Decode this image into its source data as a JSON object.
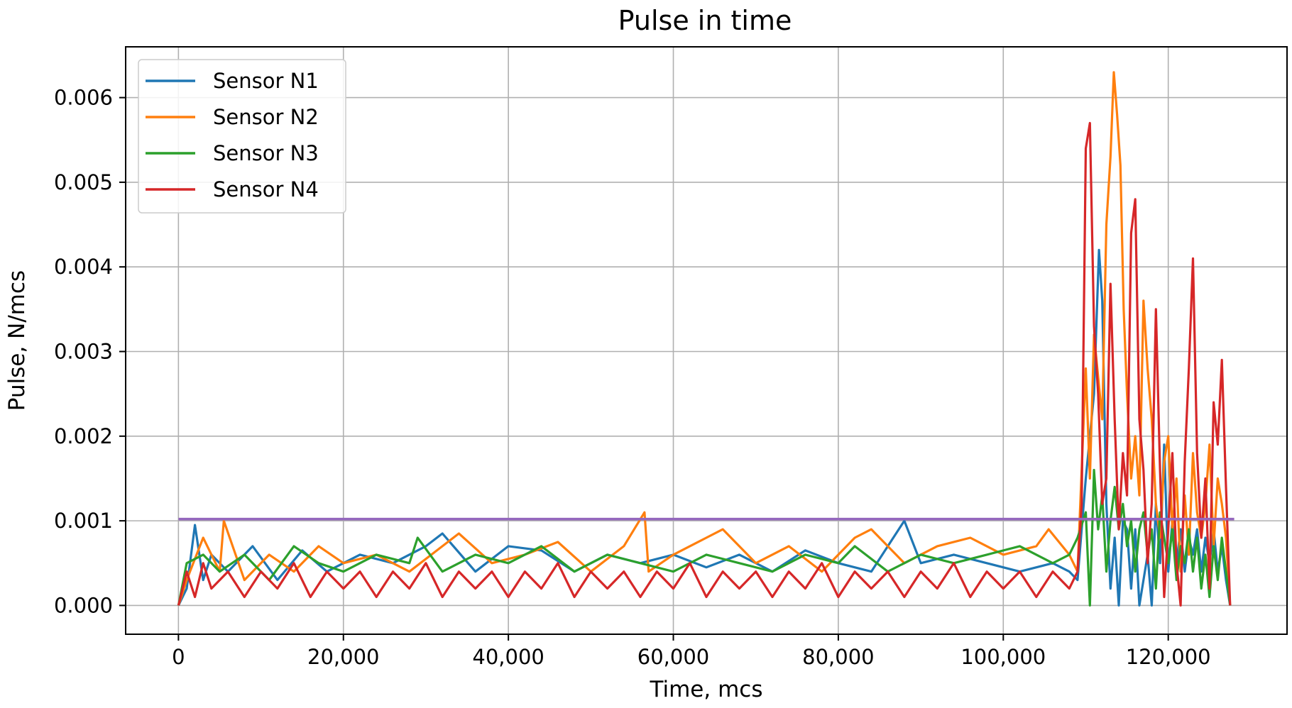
{
  "chart_data": {
    "type": "line",
    "title": "Pulse in time",
    "xlabel": "Time, mcs",
    "ylabel": "Pulse, N/mcs",
    "xlim": [
      -6400,
      134400
    ],
    "ylim": [
      -0.00034,
      0.0066
    ],
    "x_ticks": [
      0,
      20000,
      40000,
      60000,
      80000,
      100000,
      120000
    ],
    "x_tick_labels": [
      "0",
      "20,000",
      "40,000",
      "60,000",
      "80,000",
      "100,000",
      "120,000"
    ],
    "y_ticks": [
      0,
      0.001,
      0.002,
      0.003,
      0.004,
      0.005,
      0.006
    ],
    "y_tick_labels": [
      "0.000",
      "0.001",
      "0.002",
      "0.003",
      "0.004",
      "0.005",
      "0.006"
    ],
    "grid": true,
    "legend_position": "top-left",
    "series": [
      {
        "name": "Sensor N1",
        "color": "#1f77b4",
        "x": [
          0,
          1000,
          2000,
          3000,
          4000,
          6000,
          9000,
          12000,
          15000,
          18000,
          22000,
          26000,
          30000,
          32000,
          36000,
          40000,
          44000,
          48000,
          52000,
          56000,
          60000,
          64000,
          68000,
          72000,
          76000,
          80000,
          84000,
          88000,
          90000,
          94000,
          98000,
          102000,
          106000,
          108000,
          109000,
          110000,
          111000,
          111600,
          112000,
          112500,
          113000,
          113500,
          114000,
          114500,
          115000,
          115500,
          116000,
          116500,
          117000,
          117500,
          118000,
          118500,
          119000,
          119500,
          120000,
          120500,
          121000,
          121500,
          122000,
          122500,
          123000,
          123500,
          124000,
          124500,
          125000,
          125500,
          126000,
          126500,
          127000,
          127500
        ],
        "y": [
          0,
          0.0002,
          0.00095,
          0.0003,
          0.0006,
          0.0004,
          0.0007,
          0.0003,
          0.00065,
          0.0004,
          0.0006,
          0.0005,
          0.0007,
          0.00085,
          0.0004,
          0.0007,
          0.00065,
          0.0004,
          0.0006,
          0.0005,
          0.0006,
          0.00045,
          0.0006,
          0.0004,
          0.00065,
          0.0005,
          0.0004,
          0.001,
          0.0005,
          0.0006,
          0.0005,
          0.0004,
          0.0005,
          0.0004,
          0.0003,
          0.0015,
          0.0025,
          0.0042,
          0.0036,
          0.0012,
          0.0002,
          0.0008,
          0.0,
          0.001,
          0.0009,
          0.0002,
          0.0009,
          0.0,
          0.0003,
          0.0006,
          0.0,
          0.0012,
          0.0005,
          0.0019,
          0.0004,
          0.001,
          0.0005,
          0.0009,
          0.0004,
          0.0008,
          0.0006,
          0.0009,
          0.0004,
          0.0008,
          0.0005,
          0.0009,
          0.0004,
          0.0007,
          0.0003,
          0.0
        ]
      },
      {
        "name": "Sensor N2",
        "color": "#ff7f0e",
        "x": [
          0,
          1000,
          3000,
          5000,
          5500,
          8000,
          11000,
          14000,
          17000,
          20000,
          24000,
          28000,
          32000,
          34000,
          38000,
          42000,
          46000,
          50000,
          54000,
          56500,
          57000,
          60000,
          64000,
          66000,
          70000,
          74000,
          78000,
          82000,
          84000,
          88000,
          92000,
          96000,
          100000,
          104000,
          105500,
          108000,
          109000,
          110000,
          110500,
          111000,
          112000,
          112500,
          113000,
          113400,
          113800,
          114200,
          114600,
          115000,
          115500,
          116000,
          116500,
          117000,
          117500,
          118000,
          118500,
          119000,
          119500,
          120000,
          120500,
          121000,
          121500,
          122000,
          122500,
          123000,
          123500,
          124000,
          124500,
          125000,
          125500,
          126000,
          126500,
          127000,
          127500
        ],
        "y": [
          0,
          0.0003,
          0.0008,
          0.0004,
          0.001,
          0.0003,
          0.0006,
          0.0004,
          0.0007,
          0.0005,
          0.0006,
          0.0004,
          0.0007,
          0.00085,
          0.0005,
          0.0006,
          0.00075,
          0.0004,
          0.0007,
          0.0011,
          0.0004,
          0.0006,
          0.0008,
          0.0009,
          0.0005,
          0.0007,
          0.0004,
          0.0008,
          0.0009,
          0.0005,
          0.0007,
          0.0008,
          0.0006,
          0.0007,
          0.0009,
          0.0006,
          0.0004,
          0.0028,
          0.0015,
          0.0032,
          0.0022,
          0.0045,
          0.0053,
          0.0063,
          0.0058,
          0.0052,
          0.0035,
          0.0025,
          0.0015,
          0.002,
          0.0013,
          0.0036,
          0.0028,
          0.0022,
          0.0012,
          0.0008,
          0.0017,
          0.002,
          0.0009,
          0.0015,
          0.0004,
          0.0013,
          0.0006,
          0.0018,
          0.0011,
          0.0008,
          0.0012,
          0.0019,
          0.0007,
          0.0015,
          0.0012,
          0.0008,
          0.0
        ]
      },
      {
        "name": "Sensor N3",
        "color": "#2ca02c",
        "x": [
          0,
          1000,
          3000,
          5000,
          8000,
          11000,
          14000,
          17000,
          20000,
          24000,
          28000,
          29000,
          32000,
          36000,
          40000,
          44000,
          48000,
          52000,
          56000,
          60000,
          64000,
          68000,
          72000,
          76000,
          80000,
          82000,
          86000,
          90000,
          94000,
          98000,
          102000,
          106000,
          108000,
          109000,
          110000,
          110500,
          111000,
          111500,
          112000,
          112500,
          113000,
          113500,
          114000,
          114500,
          115000,
          115500,
          116000,
          116500,
          117000,
          117500,
          118000,
          118500,
          119000,
          119500,
          120000,
          120500,
          121000,
          121500,
          122000,
          122500,
          123000,
          123500,
          124000,
          124500,
          125000,
          125500,
          126000,
          126500,
          127000,
          127500
        ],
        "y": [
          0,
          0.0005,
          0.0006,
          0.0004,
          0.0006,
          0.0003,
          0.0007,
          0.0005,
          0.0004,
          0.0006,
          0.0005,
          0.0008,
          0.0004,
          0.0006,
          0.0005,
          0.0007,
          0.0004,
          0.0006,
          0.0005,
          0.0004,
          0.0006,
          0.0005,
          0.0004,
          0.0006,
          0.0005,
          0.0007,
          0.0004,
          0.0006,
          0.0005,
          0.0006,
          0.0007,
          0.0005,
          0.0006,
          0.0008,
          0.0011,
          0.0,
          0.0016,
          0.0009,
          0.0013,
          0.0004,
          0.001,
          0.0014,
          0.0009,
          0.0012,
          0.0007,
          0.001,
          0.0004,
          0.0009,
          0.0011,
          0.0006,
          0.0009,
          0.0002,
          0.0011,
          0.0008,
          0.0005,
          0.0009,
          0.0003,
          0.0007,
          0.0005,
          0.0009,
          0.0004,
          0.0008,
          0.0002,
          0.0006,
          0.0001,
          0.0007,
          0.0003,
          0.0008,
          0.0004,
          0.0
        ]
      },
      {
        "name": "Sensor N4",
        "color": "#d62728",
        "x": [
          0,
          1000,
          2000,
          3000,
          4000,
          6000,
          8000,
          10000,
          12000,
          14000,
          16000,
          18000,
          20000,
          22000,
          24000,
          26000,
          28000,
          30000,
          32000,
          34000,
          36000,
          38000,
          40000,
          42000,
          44000,
          46000,
          48000,
          50000,
          52000,
          54000,
          56000,
          58000,
          60000,
          62000,
          64000,
          66000,
          68000,
          70000,
          72000,
          74000,
          76000,
          78000,
          80000,
          82000,
          84000,
          86000,
          88000,
          90000,
          92000,
          94000,
          96000,
          98000,
          100000,
          102000,
          104000,
          106000,
          108000,
          109000,
          109500,
          110000,
          110500,
          111000,
          111500,
          112000,
          112500,
          113000,
          113500,
          114000,
          114500,
          115000,
          115500,
          116000,
          116500,
          117000,
          117500,
          118000,
          118500,
          119000,
          119500,
          120000,
          120500,
          121000,
          121500,
          122000,
          122500,
          123000,
          123500,
          124000,
          124500,
          125000,
          125500,
          126000,
          126500,
          127000,
          127500
        ],
        "y": [
          0,
          0.0004,
          0.0001,
          0.0005,
          0.0002,
          0.0004,
          0.0001,
          0.0004,
          0.0002,
          0.0005,
          0.0001,
          0.0004,
          0.0002,
          0.0004,
          0.0001,
          0.0004,
          0.0002,
          0.0005,
          0.0001,
          0.0004,
          0.0002,
          0.0004,
          0.0001,
          0.0004,
          0.0002,
          0.0005,
          0.0001,
          0.0004,
          0.0002,
          0.0004,
          0.0001,
          0.0004,
          0.0002,
          0.0005,
          0.0001,
          0.0004,
          0.0002,
          0.0004,
          0.0001,
          0.0004,
          0.0002,
          0.0005,
          0.0001,
          0.0004,
          0.0002,
          0.0004,
          0.0001,
          0.0004,
          0.0002,
          0.0005,
          0.0001,
          0.0004,
          0.0002,
          0.0004,
          0.0001,
          0.0004,
          0.0002,
          0.0004,
          0.0012,
          0.0054,
          0.0057,
          0.0033,
          0.0025,
          0.0012,
          0.0015,
          0.0038,
          0.0022,
          0.0009,
          0.0018,
          0.0013,
          0.0044,
          0.0048,
          0.0022,
          0.0016,
          0.0005,
          0.0012,
          0.0035,
          0.0016,
          0.0001,
          0.0009,
          0.0018,
          0.0005,
          0.0,
          0.0017,
          0.0028,
          0.0041,
          0.0018,
          0.0008,
          0.0015,
          0.0002,
          0.0024,
          0.0019,
          0.0029,
          0.0014,
          0.0
        ]
      },
      {
        "color": "#9467bd",
        "x": [
          0,
          128000
        ],
        "y": [
          0.00102,
          0.00102
        ]
      }
    ]
  }
}
